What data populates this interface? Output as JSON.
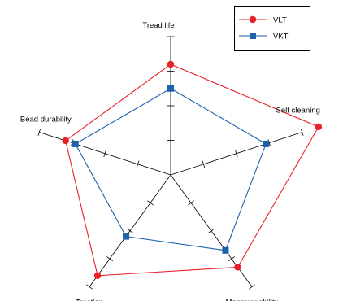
{
  "chart_data": {
    "type": "radar",
    "axes": [
      "Tread life",
      "Self cleaning",
      "Manœuvrability",
      "Traction",
      "Bead durability"
    ],
    "range": [
      0,
      4
    ],
    "ticks": [
      1,
      2,
      3,
      4
    ],
    "series": [
      {
        "name": "VLT",
        "values": [
          3.2,
          4.5,
          3.3,
          3.6,
          3.2
        ],
        "color": "#e8202a",
        "marker": "circle"
      },
      {
        "name": "VKT",
        "values": [
          2.5,
          2.9,
          2.7,
          2.2,
          2.9
        ],
        "color": "#1c61ac",
        "marker": "square"
      }
    ],
    "legend_position": "top-right",
    "grid": false
  }
}
